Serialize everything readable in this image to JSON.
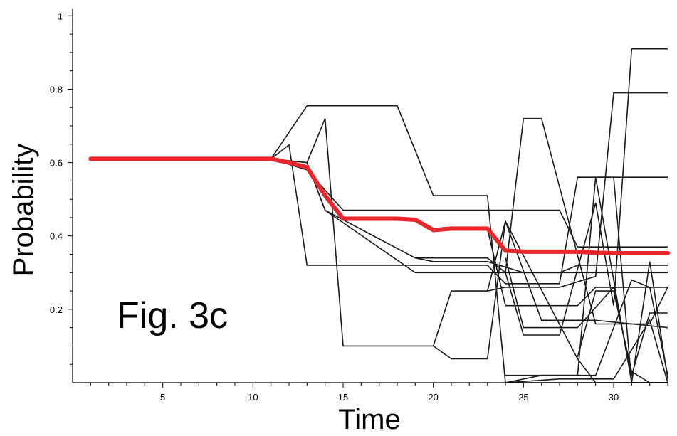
{
  "chart_data": {
    "type": "line",
    "title": "",
    "xlabel": "Time",
    "ylabel": "Probability",
    "annotation": "Fig. 3c",
    "xlim": [
      0,
      33
    ],
    "ylim": [
      0,
      1.02
    ],
    "x_ticks": [
      5,
      10,
      15,
      20,
      25,
      30
    ],
    "x_tick_labels": [
      "5",
      "10",
      "15",
      "20",
      "25",
      "30"
    ],
    "y_ticks": [
      0.2,
      0.4,
      0.6,
      0.8,
      1.0
    ],
    "y_tick_labels": [
      "0.2",
      "0.4",
      "0.6",
      "0.8",
      "1"
    ],
    "grid": false,
    "colors": {
      "mean": "#e8262b",
      "paths": "#1a1a1a",
      "axis": "#000000"
    },
    "mean_series": {
      "x": [
        1,
        11,
        12,
        13,
        14,
        15,
        16,
        17,
        18,
        19,
        20,
        21,
        22,
        23,
        24,
        25,
        26,
        27,
        28,
        29,
        30,
        31,
        32,
        33
      ],
      "y": [
        0.61,
        0.61,
        0.6,
        0.587,
        0.51,
        0.447,
        0.447,
        0.447,
        0.447,
        0.444,
        0.416,
        0.42,
        0.42,
        0.42,
        0.36,
        0.357,
        0.357,
        0.357,
        0.357,
        0.354,
        0.353,
        0.353,
        0.353,
        0.353
      ]
    },
    "paths": [
      {
        "x": [
          11,
          13,
          18,
          20,
          23,
          24,
          26,
          27,
          28,
          33
        ],
        "y": [
          0.61,
          0.755,
          0.755,
          0.51,
          0.51,
          0.0,
          0.0,
          0.0,
          0.0,
          0.0
        ]
      },
      {
        "x": [
          11,
          12,
          13,
          14,
          15,
          23,
          24,
          25,
          26,
          27,
          28,
          33
        ],
        "y": [
          0.61,
          0.648,
          0.32,
          0.32,
          0.32,
          0.32,
          0.27,
          0.27,
          0.27,
          0.27,
          0.56,
          0.56
        ]
      },
      {
        "x": [
          11,
          13,
          14,
          15,
          20,
          21,
          23,
          24,
          26,
          27,
          29,
          33
        ],
        "y": [
          0.61,
          0.6,
          0.72,
          0.1,
          0.1,
          0.065,
          0.065,
          0.44,
          0.17,
          0.17,
          0.17,
          0.15
        ]
      },
      {
        "x": [
          11,
          13,
          15,
          23,
          27,
          28,
          33
        ],
        "y": [
          0.61,
          0.58,
          0.47,
          0.47,
          0.47,
          0.37,
          0.37
        ]
      },
      {
        "x": [
          13,
          14,
          19,
          23,
          24,
          25,
          27,
          33
        ],
        "y": [
          0.6,
          0.47,
          0.34,
          0.34,
          0.3,
          0.3,
          0.3,
          0.3
        ]
      },
      {
        "x": [
          19,
          20,
          23,
          25,
          27,
          28,
          33
        ],
        "y": [
          0.34,
          0.33,
          0.33,
          0.3,
          0.3,
          0.32,
          0.32
        ]
      },
      {
        "x": [
          13,
          14,
          19,
          24,
          25,
          26,
          29,
          32,
          33
        ],
        "y": [
          0.6,
          0.47,
          0.3,
          0.3,
          0.72,
          0.72,
          0.16,
          0.16,
          0.26
        ]
      },
      {
        "x": [
          20,
          21,
          23,
          24,
          28,
          29,
          33
        ],
        "y": [
          0.1,
          0.25,
          0.25,
          0.44,
          0.065,
          0.0,
          0.0
        ]
      },
      {
        "x": [
          23,
          24,
          25,
          27,
          29,
          30,
          33
        ],
        "y": [
          0.25,
          0.26,
          0.26,
          0.26,
          0.29,
          0.79,
          0.79
        ]
      },
      {
        "x": [
          24,
          25,
          27,
          29,
          30,
          31,
          32,
          33
        ],
        "y": [
          0.3,
          0.13,
          0.13,
          0.49,
          0.21,
          0.91,
          0.91,
          0.91
        ]
      },
      {
        "x": [
          23,
          24,
          25,
          28,
          29,
          33
        ],
        "y": [
          0.42,
          0.21,
          0.21,
          0.21,
          0.26,
          0.26
        ]
      },
      {
        "x": [
          24,
          25,
          28,
          30,
          31,
          32,
          33
        ],
        "y": [
          0.34,
          0.15,
          0.15,
          0.26,
          0.02,
          0.19,
          0.19
        ]
      },
      {
        "x": [
          24,
          26,
          28,
          29,
          31,
          32,
          33
        ],
        "y": [
          0.0,
          0.02,
          0.02,
          0.56,
          0.0,
          0.0,
          0.0
        ]
      },
      {
        "x": [
          24,
          29,
          30,
          31,
          32,
          33
        ],
        "y": [
          0.02,
          0.02,
          0.15,
          0.28,
          0.26,
          0.02
        ]
      },
      {
        "x": [
          24,
          27,
          30,
          32,
          33
        ],
        "y": [
          0.0,
          0.01,
          0.01,
          0.17,
          0.0
        ]
      },
      {
        "x": [
          28,
          29,
          30,
          31,
          32,
          33
        ],
        "y": [
          0.07,
          0.25,
          0.25,
          0.03,
          0.0,
          0.0
        ]
      },
      {
        "x": [
          29,
          30,
          31,
          32,
          33
        ],
        "y": [
          0.56,
          0.56,
          0.0,
          0.33,
          0.01
        ]
      }
    ]
  }
}
